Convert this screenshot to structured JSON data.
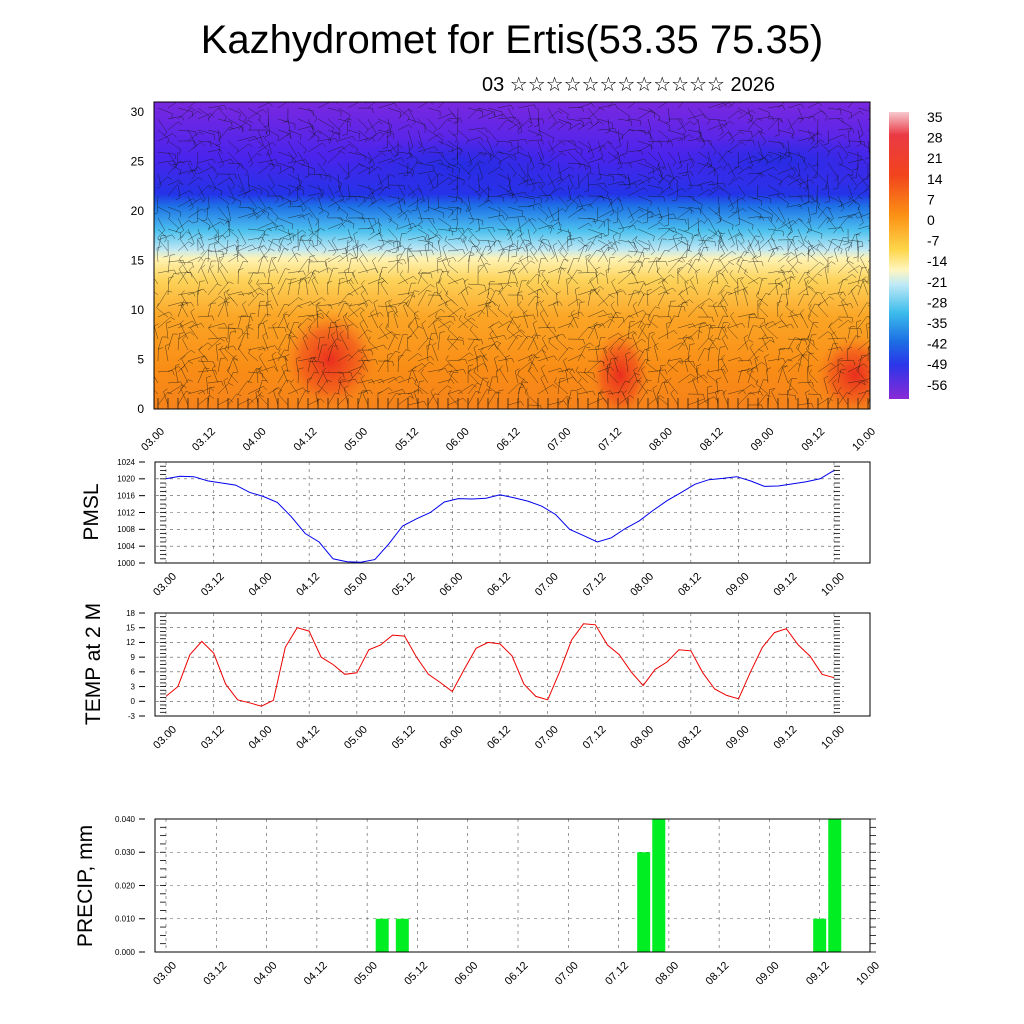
{
  "header": {
    "title": "Kazhydromet for Ertis(53.35 75.35)",
    "date": "03 ☆☆☆☆☆☆☆☆☆☆☆☆ 2026"
  },
  "time_labels": [
    "03.00",
    "03.12",
    "04.00",
    "04.12",
    "05.00",
    "05.12",
    "06.00",
    "06.12",
    "07.00",
    "07.12",
    "08.00",
    "08.12",
    "09.00",
    "09.12",
    "10.00"
  ],
  "chart_data": [
    {
      "type": "heatmap",
      "description_key": "cross-section",
      "yticks": [
        "0",
        "5",
        "10",
        "15",
        "20",
        "25",
        "30"
      ],
      "ylim": [
        0,
        31
      ],
      "colorbar": {
        "labels": [
          "35",
          "28",
          "21",
          "14",
          "7",
          "0",
          "-7",
          "-14",
          "-21",
          "-28",
          "-35",
          "-42",
          "-49",
          "-56"
        ],
        "colors": [
          "#f4c2c8",
          "#e8303a",
          "#f0431f",
          "#f76a12",
          "#fb8f10",
          "#fdb22a",
          "#fdd64a",
          "#fff5b0",
          "#a8e2f2",
          "#4cc4ee",
          "#1e86e6",
          "#2a3fe8",
          "#3a1ef0",
          "#6a1ae0",
          "#8a28d8"
        ]
      }
    },
    {
      "type": "line",
      "ylabel": "PMSL",
      "ylim": [
        1000,
        1024
      ],
      "yticks": [
        "1000",
        "1004",
        "1008",
        "1012",
        "1016",
        "1020",
        "1024"
      ],
      "color": "#0000ee",
      "values": [
        1020.0,
        1020.6,
        1020.5,
        1019.5,
        1019.0,
        1018.5,
        1016.8,
        1015.8,
        1014.4,
        1011.0,
        1007.0,
        1005.0,
        1001.0,
        1000.3,
        1000.2,
        1000.8,
        1004.5,
        1008.8,
        1010.5,
        1012.0,
        1014.5,
        1015.3,
        1015.2,
        1015.4,
        1016.2,
        1015.5,
        1014.7,
        1013.5,
        1011.5,
        1008.0,
        1006.5,
        1005.0,
        1006.0,
        1008.2,
        1010.0,
        1012.5,
        1014.8,
        1016.7,
        1018.7,
        1019.8,
        1020.1,
        1020.5,
        1019.5,
        1018.2,
        1018.3,
        1018.8,
        1019.3,
        1020.0,
        1022.0
      ]
    },
    {
      "type": "line",
      "ylabel": "TEMP at 2 M",
      "ylim": [
        -3,
        18
      ],
      "yticks": [
        "-3",
        "0",
        "3",
        "6",
        "9",
        "12",
        "15",
        "18"
      ],
      "color": "#ee0000",
      "values": [
        1.0,
        3.0,
        9.5,
        12.2,
        9.8,
        3.5,
        0.3,
        -0.3,
        -1.0,
        0.2,
        11.0,
        15.0,
        14.3,
        9.0,
        7.5,
        5.5,
        5.8,
        10.5,
        11.5,
        13.5,
        13.3,
        9.0,
        5.5,
        3.8,
        2.0,
        6.5,
        10.8,
        12.0,
        11.7,
        9.3,
        3.5,
        1.0,
        0.3,
        6.0,
        12.5,
        15.8,
        15.6,
        11.5,
        9.5,
        6.0,
        3.2,
        6.5,
        8.0,
        10.5,
        10.3,
        5.8,
        2.5,
        1.2,
        0.5,
        6.0,
        11.0,
        14.0,
        14.8,
        11.5,
        9.2,
        5.5,
        4.8
      ]
    },
    {
      "type": "bar",
      "ylabel": "PRECIP, mm",
      "ylim": [
        0,
        0.04
      ],
      "yticks": [
        "0.000",
        "0.010",
        "0.020",
        "0.030",
        "0.040"
      ],
      "color": "#00ee22",
      "values": [
        {
          "t": 5.1,
          "v": 0.01
        },
        {
          "t": 5.3,
          "v": 0.01
        },
        {
          "t": 7.7,
          "v": 0.03
        },
        {
          "t": 7.85,
          "v": 0.04
        },
        {
          "t": 9.45,
          "v": 0.01
        },
        {
          "t": 9.6,
          "v": 0.04
        }
      ]
    }
  ]
}
